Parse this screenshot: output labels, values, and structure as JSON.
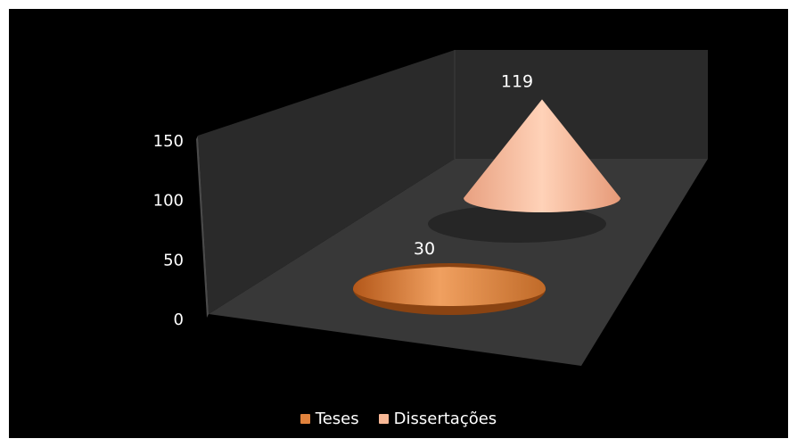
{
  "chart_data": {
    "type": "bar",
    "subtype": "3d-cone",
    "categories": [
      ""
    ],
    "series": [
      {
        "name": "Teses",
        "values": [
          30
        ],
        "color": "#e0823c",
        "label": "30"
      },
      {
        "name": "Dissertações",
        "values": [
          119
        ],
        "color": "#f8b896",
        "label": "119"
      }
    ],
    "ylim": [
      0,
      150
    ],
    "yticks": [
      "0",
      "50",
      "100",
      "150"
    ],
    "grid": false,
    "legend": "bottom",
    "background": "#000000",
    "wall_color": "#2c2c2c",
    "floor_color": "#383838"
  }
}
